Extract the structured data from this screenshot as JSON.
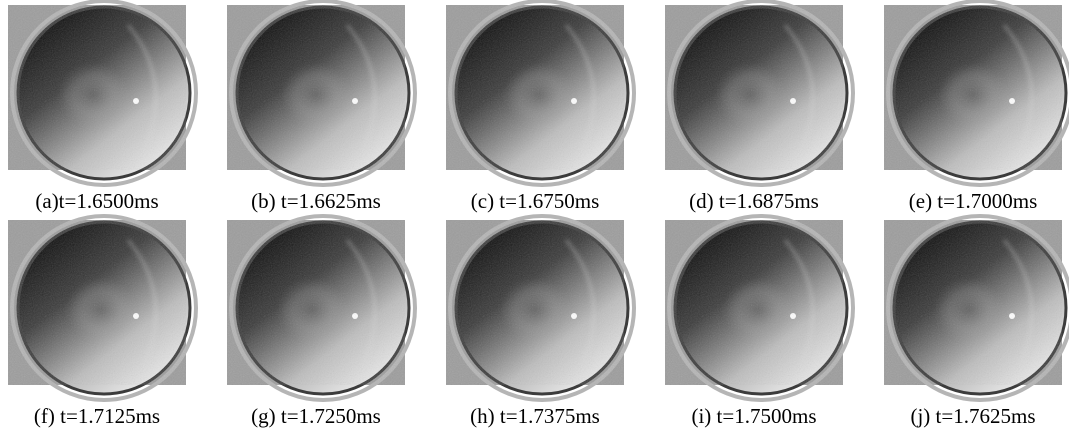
{
  "figure": {
    "panels": [
      {
        "caption": "(a)t=1.6500ms"
      },
      {
        "caption": "(b) t=1.6625ms"
      },
      {
        "caption": "(c) t=1.6750ms"
      },
      {
        "caption": "(d) t=1.6875ms"
      },
      {
        "caption": "(e) t=1.7000ms"
      },
      {
        "caption": "(f) t=1.7125ms"
      },
      {
        "caption": "(g) t=1.7250ms"
      },
      {
        "caption": "(h) t=1.7375ms"
      },
      {
        "caption": "(i) t=1.7500ms"
      },
      {
        "caption": "(j) t=1.7625ms"
      }
    ]
  }
}
